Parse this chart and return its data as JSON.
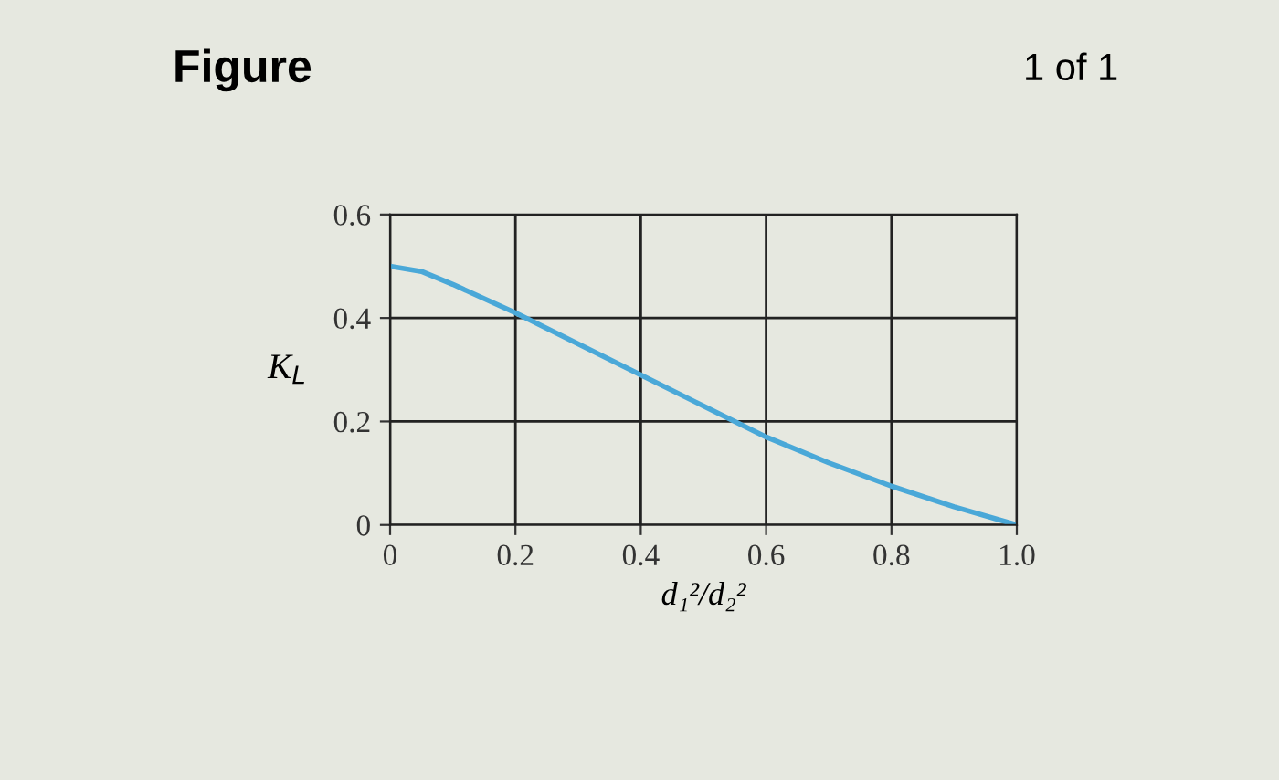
{
  "chart_data": {
    "type": "line",
    "title": "Figure",
    "annotations": [
      "1 of 1"
    ],
    "xlabel": "d₁²/d₂²",
    "ylabel": "K$_{L}$",
    "x": [
      0,
      0.05,
      0.1,
      0.2,
      0.3,
      0.4,
      0.5,
      0.55,
      0.6,
      0.7,
      0.8,
      0.9,
      1.0
    ],
    "series": [
      {
        "color": "#4aa8d8",
        "values": [
          0.5,
          0.49,
          0.465,
          0.41,
          0.35,
          0.29,
          0.23,
          0.2,
          0.17,
          0.12,
          0.075,
          0.035,
          0
        ]
      }
    ],
    "xlim": [
      0,
      1.0
    ],
    "ylim": [
      0,
      0.6
    ],
    "xticks": [
      0,
      0.2,
      0.4,
      0.6,
      0.8,
      {
        "value": 1.0,
        "label": "1.0"
      }
    ],
    "yticks": [
      0,
      0.2,
      0.4,
      0.6
    ],
    "grid": true,
    "marker": "none",
    "line_style": "solid",
    "legend": false
  }
}
